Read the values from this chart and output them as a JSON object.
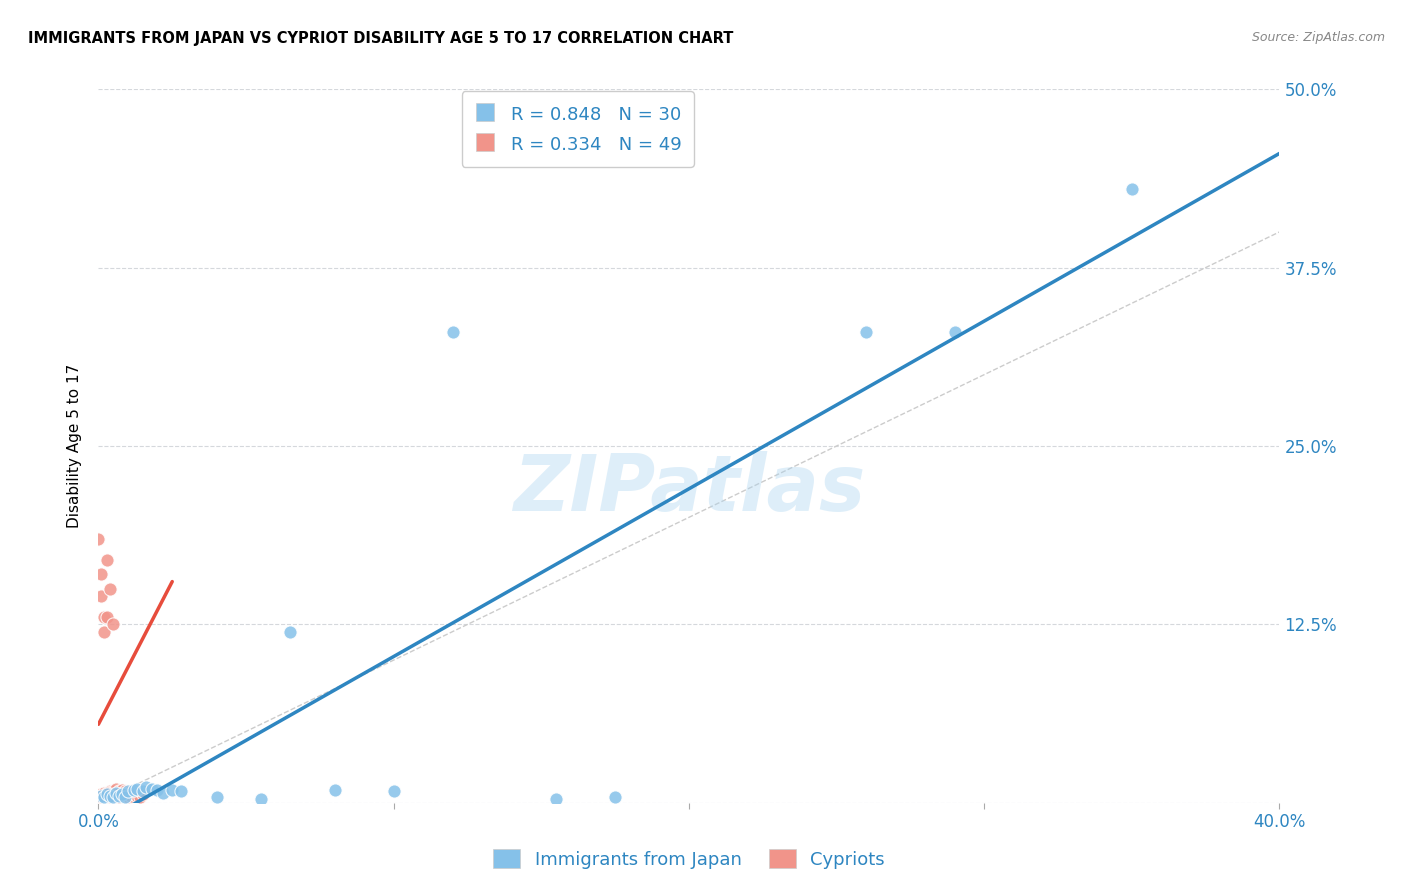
{
  "title": "IMMIGRANTS FROM JAPAN VS CYPRIOT DISABILITY AGE 5 TO 17 CORRELATION CHART",
  "source": "Source: ZipAtlas.com",
  "ylabel": "Disability Age 5 to 17",
  "xlim": [
    0.0,
    0.4
  ],
  "ylim": [
    0.0,
    0.5
  ],
  "xticks": [
    0.0,
    0.1,
    0.2,
    0.3,
    0.4
  ],
  "xtick_labels": [
    "0.0%",
    "",
    "",
    "",
    "40.0%"
  ],
  "yticks": [
    0.0,
    0.125,
    0.25,
    0.375,
    0.5
  ],
  "ytick_labels_right": [
    "",
    "12.5%",
    "25.0%",
    "37.5%",
    "50.0%"
  ],
  "legend_R_blue": "0.848",
  "legend_N_blue": "30",
  "legend_R_pink": "0.334",
  "legend_N_pink": "49",
  "watermark": "ZIPatlas",
  "blue_color": "#85c1e9",
  "pink_color": "#f1948a",
  "blue_line_color": "#2e86c1",
  "pink_line_color": "#e74c3c",
  "diagonal_color": "#cccccc",
  "background_color": "#ffffff",
  "grid_color": "#d5d8dc",
  "blue_scatter": [
    [
      0.001,
      0.005
    ],
    [
      0.002,
      0.004
    ],
    [
      0.003,
      0.006
    ],
    [
      0.004,
      0.005
    ],
    [
      0.005,
      0.004
    ],
    [
      0.006,
      0.007
    ],
    [
      0.007,
      0.005
    ],
    [
      0.008,
      0.006
    ],
    [
      0.009,
      0.004
    ],
    [
      0.01,
      0.008
    ],
    [
      0.012,
      0.009
    ],
    [
      0.013,
      0.01
    ],
    [
      0.015,
      0.008
    ],
    [
      0.016,
      0.011
    ],
    [
      0.018,
      0.01
    ],
    [
      0.02,
      0.009
    ],
    [
      0.022,
      0.007
    ],
    [
      0.025,
      0.009
    ],
    [
      0.028,
      0.008
    ],
    [
      0.04,
      0.004
    ],
    [
      0.055,
      0.003
    ],
    [
      0.065,
      0.12
    ],
    [
      0.08,
      0.009
    ],
    [
      0.1,
      0.008
    ],
    [
      0.12,
      0.33
    ],
    [
      0.155,
      0.003
    ],
    [
      0.175,
      0.004
    ],
    [
      0.26,
      0.33
    ],
    [
      0.29,
      0.33
    ],
    [
      0.35,
      0.43
    ]
  ],
  "pink_scatter": [
    [
      0.0,
      0.185
    ],
    [
      0.001,
      0.145
    ],
    [
      0.001,
      0.16
    ],
    [
      0.002,
      0.12
    ],
    [
      0.002,
      0.13
    ],
    [
      0.003,
      0.13
    ],
    [
      0.003,
      0.17
    ],
    [
      0.004,
      0.005
    ],
    [
      0.004,
      0.008
    ],
    [
      0.004,
      0.15
    ],
    [
      0.005,
      0.006
    ],
    [
      0.005,
      0.008
    ],
    [
      0.005,
      0.125
    ],
    [
      0.006,
      0.005
    ],
    [
      0.006,
      0.007
    ],
    [
      0.006,
      0.01
    ],
    [
      0.007,
      0.006
    ],
    [
      0.007,
      0.008
    ],
    [
      0.008,
      0.007
    ],
    [
      0.008,
      0.009
    ],
    [
      0.009,
      0.006
    ],
    [
      0.009,
      0.008
    ],
    [
      0.01,
      0.005
    ],
    [
      0.01,
      0.007
    ],
    [
      0.011,
      0.006
    ],
    [
      0.011,
      0.008
    ],
    [
      0.012,
      0.007
    ],
    [
      0.013,
      0.006
    ],
    [
      0.014,
      0.005
    ],
    [
      0.015,
      0.007
    ],
    [
      0.0,
      0.005
    ],
    [
      0.001,
      0.004
    ],
    [
      0.001,
      0.006
    ],
    [
      0.002,
      0.005
    ],
    [
      0.002,
      0.007
    ],
    [
      0.003,
      0.005
    ],
    [
      0.003,
      0.007
    ],
    [
      0.004,
      0.004
    ],
    [
      0.005,
      0.005
    ],
    [
      0.006,
      0.006
    ],
    [
      0.007,
      0.004
    ],
    [
      0.008,
      0.005
    ],
    [
      0.009,
      0.006
    ],
    [
      0.01,
      0.004
    ],
    [
      0.011,
      0.005
    ],
    [
      0.012,
      0.006
    ],
    [
      0.013,
      0.005
    ],
    [
      0.014,
      0.004
    ],
    [
      0.015,
      0.006
    ]
  ],
  "blue_line": [
    [
      0.0,
      -0.015
    ],
    [
      0.4,
      0.455
    ]
  ],
  "pink_line": [
    [
      0.0,
      0.055
    ],
    [
      0.025,
      0.155
    ]
  ]
}
